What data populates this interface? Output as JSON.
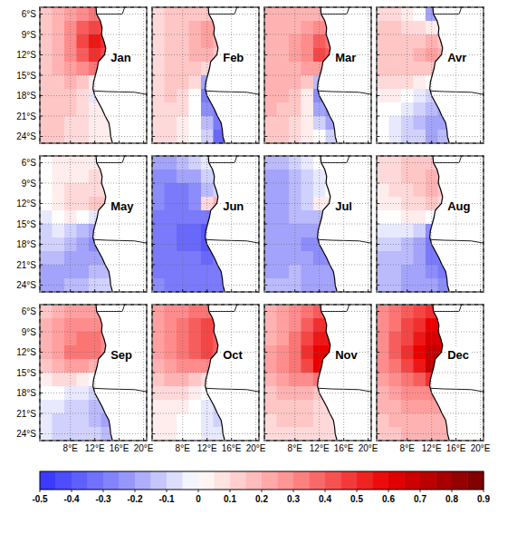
{
  "chart_data": {
    "type": "heatmap",
    "x": [
      4,
      6,
      8,
      10,
      12,
      14
    ],
    "y": [
      -6,
      -8,
      -10,
      -12,
      -14,
      -16,
      -18,
      -20,
      -22,
      -24
    ],
    "xlim": [
      3,
      20.5
    ],
    "ylim": [
      -25,
      -5
    ],
    "xticks": [
      {
        "value": 8,
        "label": "8°E"
      },
      {
        "value": 12,
        "label": "12°E"
      },
      {
        "value": 16,
        "label": "16°E"
      },
      {
        "value": 20,
        "label": "20°E"
      }
    ],
    "yticks": [
      {
        "value": -6,
        "label": "6°S"
      },
      {
        "value": -9,
        "label": "9°S"
      },
      {
        "value": -12,
        "label": "12°S"
      },
      {
        "value": -15,
        "label": "15°S"
      },
      {
        "value": -18,
        "label": "18°S"
      },
      {
        "value": -21,
        "label": "21°S"
      },
      {
        "value": -24,
        "label": "24°S"
      }
    ],
    "grid": true,
    "colorbar": {
      "range": [
        -0.5,
        0.9
      ],
      "ticks": [
        -0.5,
        -0.4,
        -0.3,
        -0.2,
        -0.1,
        0,
        0.1,
        0.2,
        0.3,
        0.4,
        0.5,
        0.6,
        0.7,
        0.8,
        0.9
      ]
    },
    "panels": [
      {
        "title": "Jan",
        "values": [
          [
            0.15,
            0.2,
            0.25,
            0.3,
            0.35,
            null
          ],
          [
            0.15,
            0.2,
            0.3,
            0.4,
            0.45,
            0.45
          ],
          [
            0.15,
            0.2,
            0.3,
            0.45,
            0.55,
            0.5
          ],
          [
            0.15,
            0.2,
            0.3,
            0.4,
            0.5,
            0.45
          ],
          [
            0.15,
            0.2,
            0.25,
            0.3,
            0.35,
            null
          ],
          [
            0.15,
            0.15,
            0.2,
            0.15,
            0.05,
            null
          ],
          [
            0.15,
            0.15,
            0.15,
            0.1,
            -0.05,
            null
          ],
          [
            0.15,
            0.15,
            0.15,
            0.1,
            0.05,
            0.05
          ],
          [
            0.15,
            0.15,
            0.1,
            0.1,
            0.05,
            0.05
          ],
          [
            0.15,
            0.15,
            0.1,
            0.1,
            0.05,
            0.05
          ]
        ]
      },
      {
        "title": "Feb",
        "values": [
          [
            0.1,
            0.15,
            0.15,
            0.15,
            0.15,
            null
          ],
          [
            0.1,
            0.15,
            0.15,
            0.2,
            0.25,
            0.25
          ],
          [
            0.1,
            0.15,
            0.15,
            0.2,
            0.25,
            0.2
          ],
          [
            0.1,
            0.15,
            0.15,
            0.2,
            0.2,
            0.15
          ],
          [
            0.1,
            0.15,
            0.15,
            0.15,
            0.1,
            null
          ],
          [
            0.1,
            0.15,
            0.15,
            0.1,
            -0.2,
            null
          ],
          [
            0.1,
            0.15,
            0.1,
            0,
            -0.3,
            null
          ],
          [
            0.1,
            0.1,
            0.1,
            0,
            -0.25,
            -0.3
          ],
          [
            0.1,
            0.1,
            0.05,
            0,
            -0.15,
            -0.3
          ],
          [
            0.1,
            0.1,
            0.05,
            0,
            -0.1,
            -0.35
          ]
        ]
      },
      {
        "title": "Mar",
        "values": [
          [
            0.2,
            0.2,
            0.2,
            0.2,
            0.2,
            null
          ],
          [
            0.2,
            0.2,
            0.2,
            0.25,
            0.3,
            0.3
          ],
          [
            0.2,
            0.2,
            0.25,
            0.3,
            0.4,
            0.35
          ],
          [
            0.2,
            0.2,
            0.25,
            0.3,
            0.45,
            0.4
          ],
          [
            0.2,
            0.2,
            0.2,
            0.25,
            0.25,
            null
          ],
          [
            0.2,
            0.2,
            0.2,
            0.15,
            -0.15,
            null
          ],
          [
            0.2,
            0.2,
            0.15,
            0.05,
            -0.25,
            null
          ],
          [
            0.2,
            0.15,
            0.15,
            0.05,
            -0.2,
            -0.25
          ],
          [
            0.15,
            0.15,
            0.1,
            0.05,
            -0.1,
            -0.2
          ],
          [
            0.15,
            0.15,
            0.1,
            0.05,
            0,
            -0.1
          ]
        ]
      },
      {
        "title": "Avr",
        "values": [
          [
            0.1,
            0.1,
            0.05,
            0,
            -0.2,
            null
          ],
          [
            0.15,
            0.15,
            0.1,
            0.1,
            0.05,
            0
          ],
          [
            0.15,
            0.15,
            0.15,
            0.15,
            0.2,
            0.15
          ],
          [
            0.15,
            0.15,
            0.15,
            0.2,
            0.25,
            0.2
          ],
          [
            0.15,
            0.15,
            0.15,
            0.15,
            0.15,
            null
          ],
          [
            0.1,
            0.1,
            0.1,
            0.05,
            0,
            null
          ],
          [
            0.05,
            0.05,
            0,
            -0.05,
            -0.1,
            null
          ],
          [
            0,
            0,
            -0.05,
            -0.1,
            -0.15,
            -0.2
          ],
          [
            0,
            -0.05,
            -0.1,
            -0.15,
            -0.2,
            -0.2
          ],
          [
            0,
            -0.05,
            -0.1,
            -0.1,
            -0.2,
            -0.15
          ]
        ]
      },
      {
        "title": "May",
        "values": [
          [
            0,
            0.05,
            0.05,
            0.05,
            0.05,
            null
          ],
          [
            0,
            0.05,
            0.05,
            0.05,
            0.1,
            0.1
          ],
          [
            0,
            0.05,
            0.1,
            0.1,
            0.1,
            0.1
          ],
          [
            0,
            0.05,
            0.1,
            0.1,
            0.15,
            0.15
          ],
          [
            -0.05,
            0,
            0.05,
            0,
            -0.05,
            null
          ],
          [
            -0.1,
            -0.05,
            -0.1,
            -0.15,
            -0.2,
            null
          ],
          [
            -0.1,
            -0.1,
            -0.15,
            -0.2,
            -0.25,
            null
          ],
          [
            -0.15,
            -0.15,
            -0.2,
            -0.2,
            -0.2,
            -0.2
          ],
          [
            -0.2,
            -0.2,
            -0.2,
            -0.2,
            -0.15,
            -0.15
          ],
          [
            -0.2,
            -0.2,
            -0.15,
            -0.15,
            -0.1,
            -0.1
          ]
        ]
      },
      {
        "title": "Jun",
        "values": [
          [
            -0.2,
            -0.2,
            -0.15,
            -0.1,
            -0.05,
            null
          ],
          [
            -0.25,
            -0.25,
            -0.2,
            -0.2,
            -0.1,
            -0.1
          ],
          [
            -0.25,
            -0.3,
            -0.3,
            -0.25,
            -0.15,
            -0.1
          ],
          [
            -0.25,
            -0.3,
            -0.3,
            -0.25,
            0.1,
            0.2
          ],
          [
            -0.3,
            -0.3,
            -0.3,
            -0.3,
            -0.3,
            null
          ],
          [
            -0.3,
            -0.3,
            -0.35,
            -0.35,
            -0.4,
            null
          ],
          [
            -0.3,
            -0.3,
            -0.35,
            -0.35,
            -0.4,
            null
          ],
          [
            -0.3,
            -0.3,
            -0.3,
            -0.3,
            -0.35,
            -0.3
          ],
          [
            -0.3,
            -0.3,
            -0.3,
            -0.3,
            -0.3,
            -0.3
          ],
          [
            -0.25,
            -0.3,
            -0.3,
            -0.3,
            -0.3,
            -0.3
          ]
        ]
      },
      {
        "title": "Jul",
        "values": [
          [
            -0.15,
            -0.15,
            -0.1,
            -0.05,
            0,
            null
          ],
          [
            -0.2,
            -0.2,
            -0.15,
            -0.1,
            -0.05,
            -0.05
          ],
          [
            -0.2,
            -0.2,
            -0.15,
            -0.1,
            -0.05,
            0
          ],
          [
            -0.2,
            -0.2,
            -0.15,
            -0.1,
            0.05,
            0.05
          ],
          [
            -0.2,
            -0.2,
            -0.15,
            -0.15,
            -0.15,
            null
          ],
          [
            -0.2,
            -0.2,
            -0.2,
            -0.2,
            -0.2,
            null
          ],
          [
            -0.2,
            -0.2,
            -0.2,
            -0.25,
            -0.25,
            null
          ],
          [
            -0.2,
            -0.2,
            -0.2,
            -0.2,
            -0.25,
            -0.25
          ],
          [
            -0.2,
            -0.2,
            -0.15,
            -0.2,
            -0.2,
            -0.2
          ],
          [
            -0.15,
            -0.15,
            -0.15,
            -0.2,
            -0.2,
            -0.2
          ]
        ]
      },
      {
        "title": "Aug",
        "values": [
          [
            0.1,
            0.1,
            0.15,
            0.15,
            0.15,
            null
          ],
          [
            0.1,
            0.1,
            0.15,
            0.15,
            0.2,
            0.15
          ],
          [
            0.05,
            0.1,
            0.1,
            0.15,
            0.2,
            0.15
          ],
          [
            0.05,
            0.05,
            0.1,
            0.1,
            0.15,
            0.1
          ],
          [
            0,
            0,
            0.05,
            0.05,
            0,
            null
          ],
          [
            -0.05,
            -0.05,
            -0.05,
            -0.1,
            -0.25,
            null
          ],
          [
            -0.1,
            -0.1,
            -0.15,
            -0.2,
            -0.3,
            null
          ],
          [
            -0.15,
            -0.15,
            -0.15,
            -0.2,
            -0.3,
            -0.3
          ],
          [
            -0.15,
            -0.15,
            -0.2,
            -0.2,
            -0.25,
            -0.3
          ],
          [
            -0.15,
            -0.15,
            -0.2,
            -0.2,
            -0.2,
            -0.25
          ]
        ]
      },
      {
        "title": "Sep",
        "values": [
          [
            0.15,
            0.2,
            0.25,
            0.25,
            0.25,
            null
          ],
          [
            0.2,
            0.25,
            0.3,
            0.3,
            0.3,
            0.3
          ],
          [
            0.2,
            0.25,
            0.3,
            0.35,
            0.35,
            0.3
          ],
          [
            0.2,
            0.25,
            0.35,
            0.35,
            0.35,
            0.3
          ],
          [
            0.15,
            0.2,
            0.25,
            0.25,
            0.2,
            null
          ],
          [
            0.05,
            0.1,
            0.1,
            0.05,
            0,
            null
          ],
          [
            0,
            0,
            -0.05,
            -0.05,
            -0.1,
            null
          ],
          [
            -0.05,
            -0.05,
            -0.1,
            -0.1,
            -0.15,
            -0.15
          ],
          [
            -0.05,
            -0.1,
            -0.1,
            -0.1,
            -0.15,
            -0.2
          ],
          [
            -0.05,
            -0.1,
            -0.1,
            -0.1,
            -0.1,
            -0.15
          ]
        ]
      },
      {
        "title": "Oct",
        "values": [
          [
            0.25,
            0.3,
            0.3,
            0.35,
            0.35,
            null
          ],
          [
            0.25,
            0.3,
            0.35,
            0.4,
            0.45,
            0.45
          ],
          [
            0.25,
            0.3,
            0.35,
            0.4,
            0.45,
            0.4
          ],
          [
            0.25,
            0.3,
            0.35,
            0.4,
            0.45,
            0.4
          ],
          [
            0.2,
            0.25,
            0.3,
            0.3,
            0.3,
            null
          ],
          [
            0.15,
            0.2,
            0.2,
            0.15,
            0.1,
            null
          ],
          [
            0.1,
            0.1,
            0.1,
            0.05,
            0,
            null
          ],
          [
            0.05,
            0.05,
            0.05,
            0,
            -0.05,
            -0.1
          ],
          [
            0.05,
            0.05,
            0,
            0,
            -0.05,
            -0.1
          ],
          [
            0.05,
            0.05,
            0,
            0,
            -0.05,
            -0.05
          ]
        ]
      },
      {
        "title": "Nov",
        "values": [
          [
            0.2,
            0.25,
            0.3,
            0.35,
            0.4,
            null
          ],
          [
            0.2,
            0.25,
            0.3,
            0.4,
            0.5,
            0.5
          ],
          [
            0.2,
            0.25,
            0.35,
            0.45,
            0.55,
            0.55
          ],
          [
            0.25,
            0.3,
            0.35,
            0.5,
            0.6,
            0.6
          ],
          [
            0.25,
            0.3,
            0.35,
            0.45,
            0.6,
            null
          ],
          [
            0.2,
            0.25,
            0.3,
            0.3,
            0.35,
            null
          ],
          [
            0.15,
            0.2,
            0.2,
            0.2,
            0.15,
            null
          ],
          [
            0.15,
            0.15,
            0.15,
            0.15,
            0.1,
            0.1
          ],
          [
            0.1,
            0.15,
            0.15,
            0.15,
            0.1,
            0.1
          ],
          [
            0.1,
            0.1,
            0.1,
            0.1,
            0.1,
            0.1
          ]
        ]
      },
      {
        "title": "Dec",
        "values": [
          [
            0.3,
            0.35,
            0.4,
            0.45,
            0.5,
            null
          ],
          [
            0.3,
            0.35,
            0.45,
            0.5,
            0.6,
            0.6
          ],
          [
            0.3,
            0.4,
            0.45,
            0.55,
            0.65,
            0.65
          ],
          [
            0.3,
            0.4,
            0.5,
            0.6,
            0.7,
            0.7
          ],
          [
            0.3,
            0.35,
            0.45,
            0.55,
            0.7,
            null
          ],
          [
            0.25,
            0.3,
            0.35,
            0.4,
            0.5,
            null
          ],
          [
            0.2,
            0.25,
            0.3,
            0.3,
            0.3,
            null
          ],
          [
            0.2,
            0.2,
            0.25,
            0.25,
            0.25,
            0.25
          ],
          [
            0.15,
            0.2,
            0.2,
            0.2,
            0.2,
            0.2
          ],
          [
            0.15,
            0.15,
            0.2,
            0.2,
            0.2,
            0.2
          ]
        ]
      }
    ]
  }
}
